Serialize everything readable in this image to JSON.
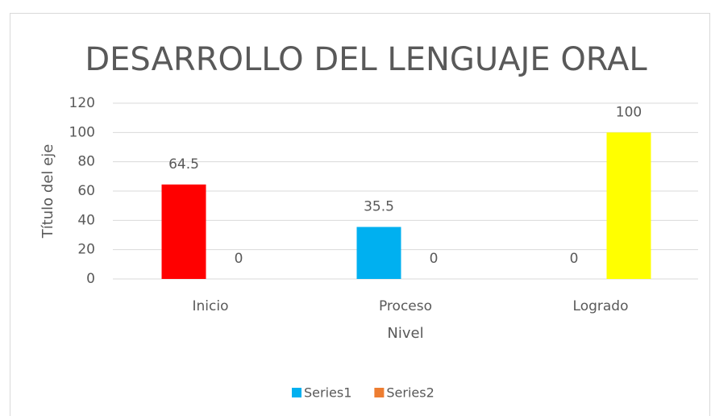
{
  "chart_data": {
    "type": "bar",
    "title": "DESARROLLO DEL LENGUAJE ORAL",
    "x_label": "Nivel",
    "y_label": "Título del eje",
    "categories": [
      "Inicio",
      "Proceso",
      "Logrado"
    ],
    "series": [
      {
        "name": "Series1",
        "color": "#00b0f0",
        "colors": [
          "#ff0000",
          "#00b0f0",
          "#00b0f0"
        ],
        "values": [
          64.5,
          35.5,
          0
        ]
      },
      {
        "name": "Series2",
        "color": "#ed7d31",
        "colors": [
          "#ed7d31",
          "#ed7d31",
          "#ffff00"
        ],
        "values": [
          0,
          0,
          100
        ]
      }
    ],
    "ylim": [
      0,
      120
    ],
    "yticks": [
      0,
      20,
      40,
      60,
      80,
      100,
      120
    ],
    "grid": true,
    "legend": "bottom"
  }
}
